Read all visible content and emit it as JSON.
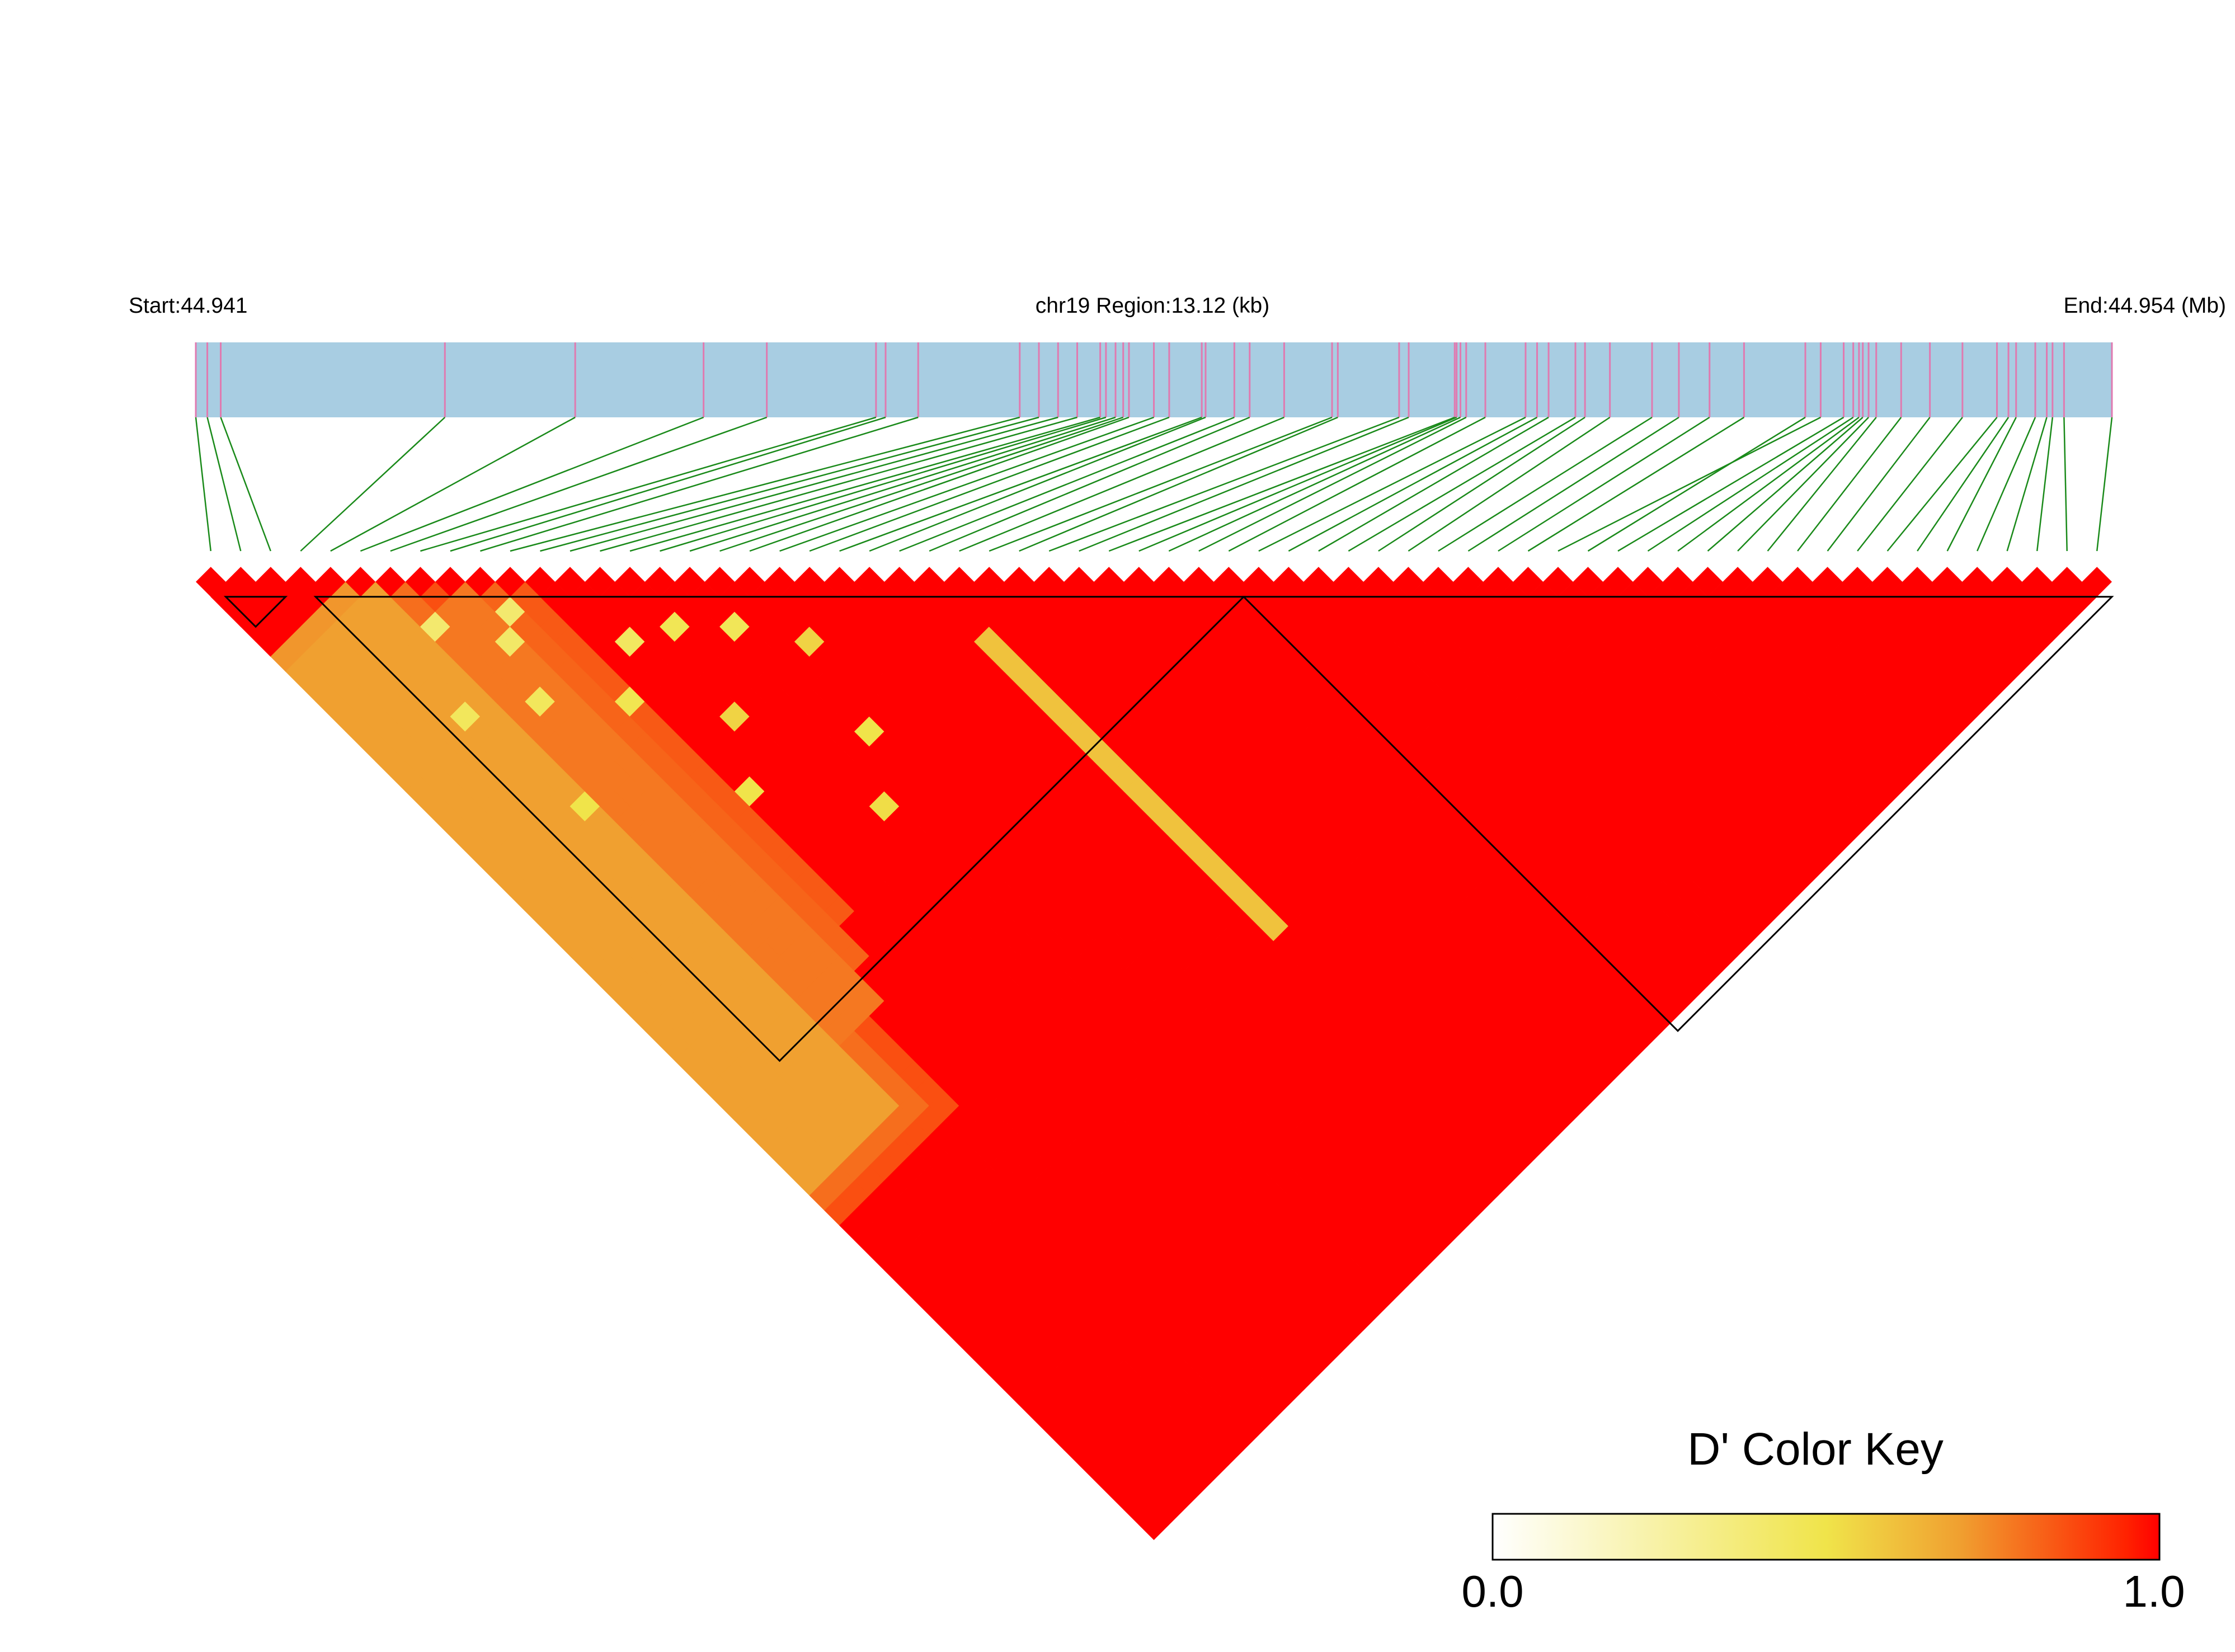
{
  "chart_data": {
    "type": "heatmap",
    "subtype": "LD triangle heatmap (D')",
    "start_label": "Start:44.941",
    "region_label": "chr19 Region:13.12 (kb)",
    "end_label": "End:44.954 (Mb)",
    "start_mb": 44.941,
    "end_mb": 44.954,
    "region_kb": 13.12,
    "chromosome": "chr19",
    "snp_count": 64,
    "snp_relative_positions": [
      0.0,
      0.006,
      0.013,
      0.13,
      0.198,
      0.265,
      0.298,
      0.355,
      0.36,
      0.377,
      0.43,
      0.44,
      0.45,
      0.46,
      0.472,
      0.475,
      0.48,
      0.484,
      0.487,
      0.5,
      0.508,
      0.525,
      0.527,
      0.542,
      0.55,
      0.568,
      0.593,
      0.596,
      0.628,
      0.633,
      0.657,
      0.658,
      0.66,
      0.663,
      0.673,
      0.694,
      0.7,
      0.706,
      0.72,
      0.725,
      0.738,
      0.76,
      0.774,
      0.79,
      0.808,
      0.848,
      0.84,
      0.86,
      0.865,
      0.868,
      0.87,
      0.873,
      0.877,
      0.89,
      0.905,
      0.922,
      0.94,
      0.946,
      0.95,
      0.96,
      0.966,
      0.969,
      0.975,
      1.0
    ],
    "ld_blocks": [
      {
        "first_snp": 1,
        "last_snp": 2
      },
      {
        "first_snp": 4,
        "last_snp": 34
      },
      {
        "first_snp": 35,
        "last_snp": 63
      }
    ],
    "d_prime": {
      "default": 1.0,
      "stripes": [
        {
          "from_snp": 4,
          "to_snp_range": [
            5,
            38
          ],
          "value": 0.72
        },
        {
          "from_snp": 5,
          "to_snp_range": [
            6,
            40
          ],
          "value": 0.7
        },
        {
          "from_snp": 6,
          "to_snp_range": [
            7,
            41
          ],
          "value": 0.8
        },
        {
          "from_snp": 7,
          "to_snp_range": [
            8,
            42
          ],
          "value": 0.86
        },
        {
          "from_snp": 8,
          "to_snp_range": [
            9,
            36
          ],
          "value": 0.78
        },
        {
          "from_snp": 9,
          "to_snp_range": [
            10,
            34
          ],
          "value": 0.82
        },
        {
          "from_snp": 10,
          "to_snp_range": [
            11,
            32
          ],
          "value": 0.84
        }
      ],
      "yellow_cells": [
        {
          "i": 4,
          "j": 13,
          "value": 0.45
        },
        {
          "i": 5,
          "j": 20,
          "value": 0.5
        },
        {
          "i": 6,
          "j": 9,
          "value": 0.4
        },
        {
          "i": 7,
          "j": 15,
          "value": 0.45
        },
        {
          "i": 8,
          "j": 12,
          "value": 0.42
        },
        {
          "i": 9,
          "j": 11,
          "value": 0.4
        },
        {
          "i": 10,
          "j": 18,
          "value": 0.48
        },
        {
          "i": 11,
          "j": 25,
          "value": 0.5
        },
        {
          "i": 12,
          "j": 16,
          "value": 0.44
        },
        {
          "i": 13,
          "j": 22,
          "value": 0.55
        },
        {
          "i": 14,
          "j": 17,
          "value": 0.47
        },
        {
          "i": 15,
          "j": 30,
          "value": 0.52
        },
        {
          "i": 16,
          "j": 19,
          "value": 0.46
        },
        {
          "i": 17,
          "j": 27,
          "value": 0.5
        },
        {
          "i": 18,
          "j": 22,
          "value": 0.55
        },
        {
          "i": 24,
          "j": 28,
          "value": 0.6
        },
        {
          "i": 24,
          "j": 29,
          "value": 0.6
        },
        {
          "i": 24,
          "j": 30,
          "value": 0.6
        },
        {
          "i": 24,
          "j": 31,
          "value": 0.6
        },
        {
          "i": 24,
          "j": 32,
          "value": 0.6
        },
        {
          "i": 24,
          "j": 33,
          "value": 0.6
        },
        {
          "i": 24,
          "j": 34,
          "value": 0.6
        },
        {
          "i": 24,
          "j": 35,
          "value": 0.6
        },
        {
          "i": 24,
          "j": 36,
          "value": 0.6
        },
        {
          "i": 24,
          "j": 37,
          "value": 0.6
        },
        {
          "i": 24,
          "j": 38,
          "value": 0.6
        },
        {
          "i": 24,
          "j": 39,
          "value": 0.6
        },
        {
          "i": 24,
          "j": 40,
          "value": 0.6
        },
        {
          "i": 24,
          "j": 41,
          "value": 0.6
        },
        {
          "i": 24,
          "j": 42,
          "value": 0.6
        },
        {
          "i": 24,
          "j": 43,
          "value": 0.6
        },
        {
          "i": 24,
          "j": 44,
          "value": 0.6
        },
        {
          "i": 24,
          "j": 45,
          "value": 0.6
        },
        {
          "i": 24,
          "j": 46,
          "value": 0.6
        },
        {
          "i": 24,
          "j": 47,
          "value": 0.6
        }
      ]
    },
    "color_key": {
      "title": "D' Color Key",
      "min_label": "0.0",
      "max_label": "1.0",
      "colors": [
        "#ffffff",
        "#f0e44a",
        "#f0a030",
        "#ff2200",
        "#ff0000"
      ]
    },
    "colors": {
      "chromosome_bar": "#a8cde2",
      "snp_tick": "#e07ab0",
      "connector_line": "#1a8a1a",
      "block_outline": "#000000"
    }
  }
}
